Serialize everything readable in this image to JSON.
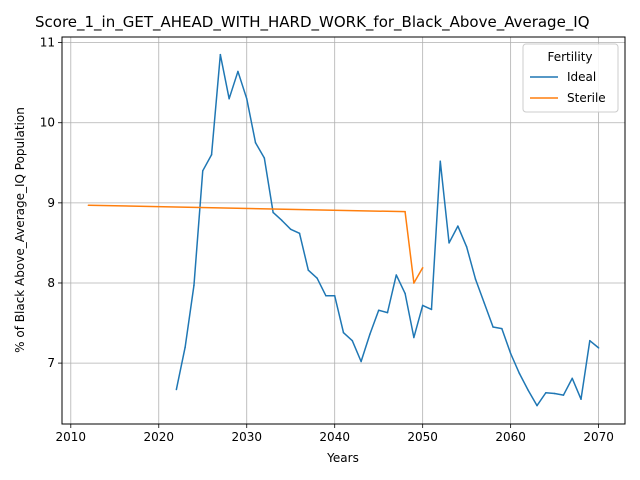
{
  "chart_data": {
    "type": "line",
    "title": "Score_1_in_GET_AHEAD_WITH_HARD_WORK_for_Black_Above_Average_IQ",
    "xlabel": "Years",
    "ylabel": "% of Black Above_Average_IQ Population",
    "xlim": [
      2009,
      2073
    ],
    "ylim": [
      6.24,
      11.07
    ],
    "xticks": [
      2010,
      2020,
      2030,
      2040,
      2050,
      2060,
      2070
    ],
    "yticks": [
      7,
      8,
      9,
      10,
      11
    ],
    "grid": true,
    "legend": {
      "title": "Fertility",
      "placement": "top-right"
    },
    "series": [
      {
        "name": "Ideal",
        "color": "#1f77b4",
        "points": [
          [
            2022,
            6.67
          ],
          [
            2023,
            7.2
          ],
          [
            2024,
            7.97
          ],
          [
            2025,
            9.4
          ],
          [
            2026,
            9.6
          ],
          [
            2027,
            10.85
          ],
          [
            2028,
            10.3
          ],
          [
            2029,
            10.64
          ],
          [
            2030,
            10.3
          ],
          [
            2031,
            9.75
          ],
          [
            2032,
            9.56
          ],
          [
            2033,
            8.88
          ],
          [
            2034,
            8.78
          ],
          [
            2035,
            8.67
          ],
          [
            2036,
            8.62
          ],
          [
            2037,
            8.16
          ],
          [
            2038,
            8.06
          ],
          [
            2039,
            7.84
          ],
          [
            2040,
            7.84
          ],
          [
            2041,
            7.38
          ],
          [
            2042,
            7.28
          ],
          [
            2043,
            7.02
          ],
          [
            2044,
            7.36
          ],
          [
            2045,
            7.66
          ],
          [
            2046,
            7.63
          ],
          [
            2047,
            8.1
          ],
          [
            2048,
            7.87
          ],
          [
            2049,
            7.32
          ],
          [
            2050,
            7.72
          ],
          [
            2051,
            7.67
          ],
          [
            2052,
            9.52
          ],
          [
            2053,
            8.5
          ],
          [
            2054,
            8.71
          ],
          [
            2055,
            8.45
          ],
          [
            2056,
            8.05
          ],
          [
            2057,
            7.75
          ],
          [
            2058,
            7.45
          ],
          [
            2059,
            7.43
          ],
          [
            2060,
            7.12
          ],
          [
            2061,
            6.87
          ],
          [
            2062,
            6.66
          ],
          [
            2063,
            6.47
          ],
          [
            2064,
            6.63
          ],
          [
            2065,
            6.62
          ],
          [
            2066,
            6.6
          ],
          [
            2067,
            6.81
          ],
          [
            2068,
            6.55
          ],
          [
            2069,
            7.28
          ],
          [
            2070,
            7.19
          ]
        ]
      },
      {
        "name": "Sterile",
        "color": "#ff7f0e",
        "points": [
          [
            2012,
            8.97
          ],
          [
            2048,
            8.89
          ],
          [
            2049,
            8.0
          ],
          [
            2050,
            8.19
          ]
        ]
      }
    ]
  }
}
